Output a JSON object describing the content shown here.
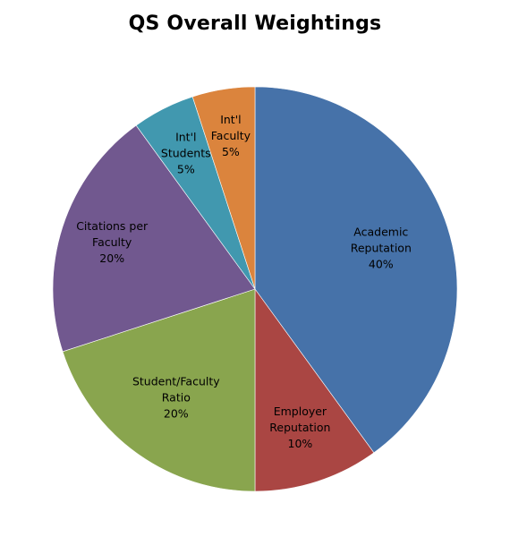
{
  "chart_data": {
    "type": "pie",
    "title": "QS Overall Weightings",
    "start_angle_deg": 0,
    "direction": "clockwise",
    "slices": [
      {
        "label": [
          "Academic",
          "Reputation",
          "40%"
        ],
        "value": 40,
        "color": "#4672a9"
      },
      {
        "label": [
          "Employer",
          "Reputation",
          "10%"
        ],
        "value": 10,
        "color": "#aa4643"
      },
      {
        "label": [
          "Student/Faculty",
          "Ratio",
          "20%"
        ],
        "value": 20,
        "color": "#89a54e"
      },
      {
        "label": [
          "Citations per",
          "Faculty",
          "20%"
        ],
        "value": 20,
        "color": "#71588f"
      },
      {
        "label": [
          "Int'l",
          "Students",
          "5%"
        ],
        "value": 5,
        "color": "#4198af"
      },
      {
        "label": [
          "Int'l",
          "Faculty",
          "5%"
        ],
        "value": 5,
        "color": "#db843d"
      }
    ]
  }
}
